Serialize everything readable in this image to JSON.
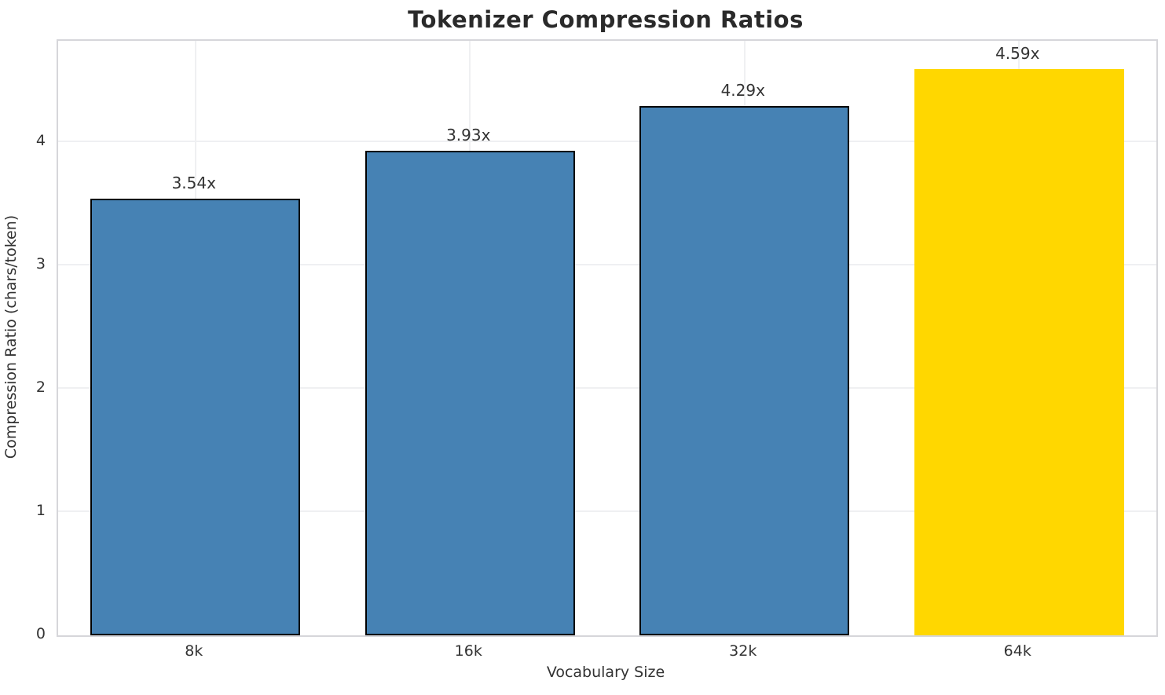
{
  "title": "Tokenizer Compression Ratios",
  "chart_data": {
    "type": "bar",
    "title": "Tokenizer Compression Ratios",
    "xlabel": "Vocabulary Size",
    "ylabel": "Compression Ratio (chars/token)",
    "categories": [
      "8k",
      "16k",
      "32k",
      "64k"
    ],
    "values": [
      3.54,
      3.93,
      4.29,
      4.59
    ],
    "bar_labels": [
      "3.54x",
      "3.93x",
      "4.29x",
      "4.59x"
    ],
    "yticks": [
      0,
      1,
      2,
      3,
      4
    ],
    "ylim": [
      0,
      4.82
    ],
    "grid": true,
    "legend": "none",
    "highlight_index": 3,
    "bar_colors": [
      "#4682B4",
      "#4682B4",
      "#4682B4",
      "#FFD700"
    ],
    "bar_edge_colors": [
      "#000000",
      "#000000",
      "#000000",
      "none"
    ]
  },
  "colors": {
    "bar_blue": "#4682B4",
    "bar_gold": "#FFD700",
    "grid": "#eff0f2",
    "spine": "#d6d6da",
    "text": "#333333",
    "title_text": "#2a2a2a"
  }
}
